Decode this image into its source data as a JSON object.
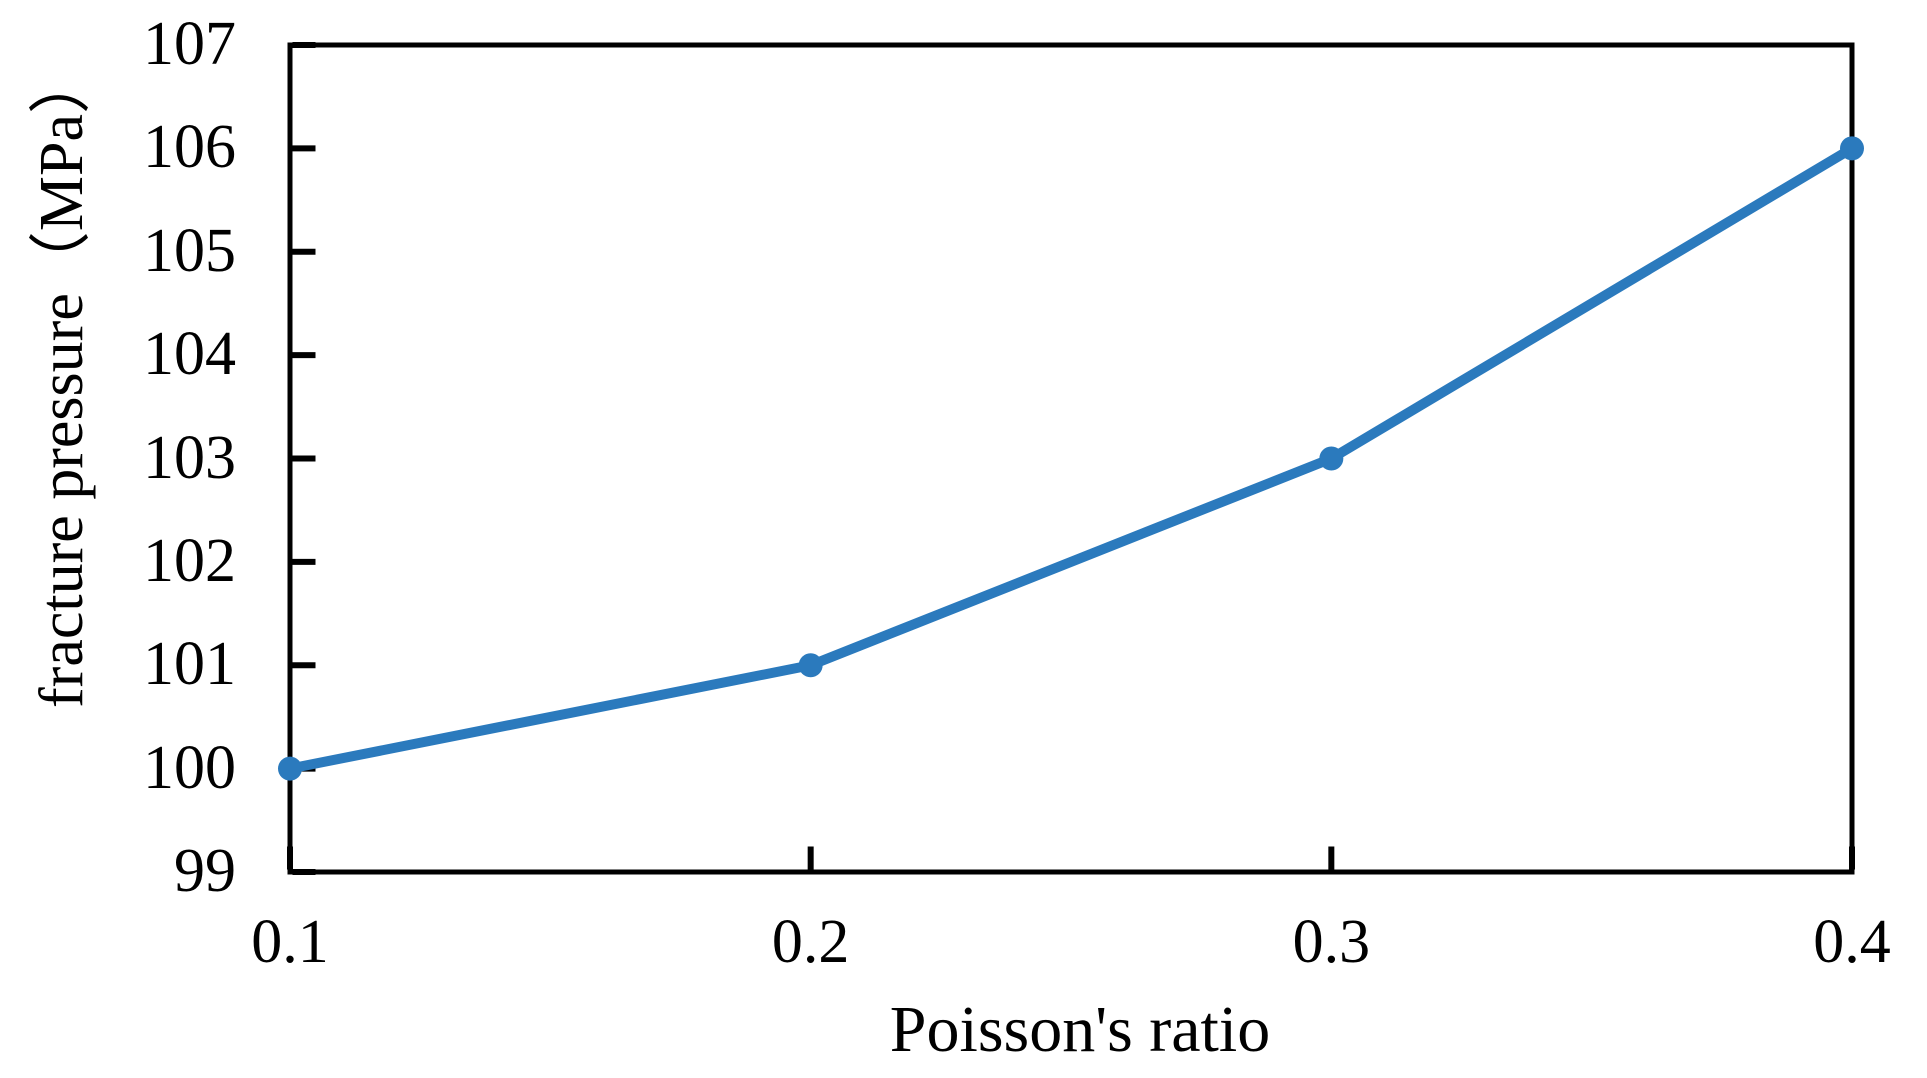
{
  "figure": {
    "background": "#ffffff"
  },
  "chart_data": {
    "type": "line",
    "title": "",
    "xlabel": "Poisson's ratio",
    "ylabel": "fracture pressure（MPa）",
    "x": [
      0.1,
      0.2,
      0.3,
      0.4
    ],
    "series": [
      {
        "name": "fracture pressure",
        "values": [
          100,
          101,
          103,
          106
        ]
      }
    ],
    "xlim": [
      0.1,
      0.4
    ],
    "ylim": [
      99,
      107
    ],
    "x_ticks": [
      0.1,
      0.2,
      0.3,
      0.4
    ],
    "x_tick_labels": [
      "0.1",
      "0.2",
      "0.3",
      "0.4"
    ],
    "y_ticks": [
      99,
      100,
      101,
      102,
      103,
      104,
      105,
      106,
      107
    ],
    "y_tick_labels": [
      "99",
      "100",
      "101",
      "102",
      "103",
      "104",
      "105",
      "106",
      "107"
    ],
    "grid": false,
    "legend": "none",
    "marker": "circle",
    "line_color": "#2B7ABD",
    "axis_color": "#000000",
    "text_color": "#000000"
  }
}
